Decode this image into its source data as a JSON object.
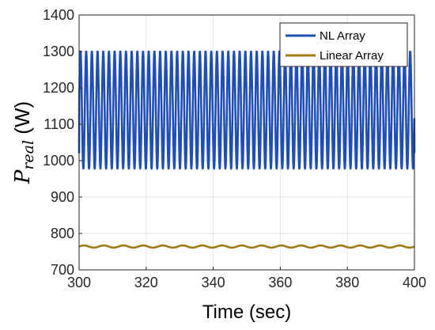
{
  "chart_data": {
    "type": "line",
    "xlabel": "Time (sec)",
    "ylabel_main": "P",
    "ylabel_sub": "real",
    "ylabel_unit": " (W)",
    "xlim": [
      300,
      400
    ],
    "ylim": [
      700,
      1400
    ],
    "xticks": [
      300,
      320,
      340,
      360,
      380,
      400
    ],
    "yticks": [
      700,
      800,
      900,
      1000,
      1100,
      1200,
      1300,
      1400
    ],
    "grid": true,
    "legend_position": "top-right",
    "series": [
      {
        "name": "NL Array",
        "color": "#1f4fb4",
        "oscillation": {
          "x_start": 300,
          "x_end": 400,
          "cycles": 59,
          "min": 978,
          "max": 1300,
          "start_value": 1020,
          "end_value": 1020
        }
      },
      {
        "name": "Linear Array",
        "color": "#a07a14",
        "oscillation": {
          "x_start": 300,
          "x_end": 400,
          "cycles": 17,
          "min": 761,
          "max": 767,
          "start_value": 764,
          "end_value": 764
        }
      }
    ]
  }
}
